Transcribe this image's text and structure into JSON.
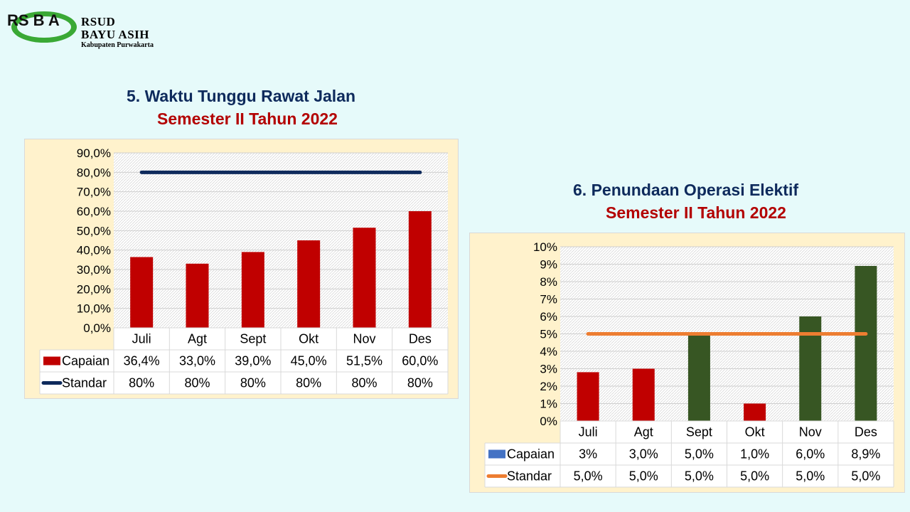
{
  "header": {
    "logo_mark": "RS B A",
    "org_line1": "RSUD",
    "org_line2": "BAYU ASIH",
    "org_line3": "Kabupaten Purwakarta"
  },
  "colors": {
    "background": "#e6fafa",
    "panel": "#fff2cc",
    "capaian_red": "#c00000",
    "capaian_green": "#375623",
    "standar_navy": "#0e2a5c",
    "standar_orange": "#ed7d31",
    "legend_blue": "#4472c4"
  },
  "chart_data": [
    {
      "type": "bar",
      "title": "5. Waktu Tunggu Rawat Jalan",
      "subtitle": "Semester II Tahun 2022",
      "categories": [
        "Juli",
        "Agt",
        "Sept",
        "Okt",
        "Nov",
        "Des"
      ],
      "ylim": [
        0,
        90
      ],
      "yticks": [
        "0,0%",
        "10,0%",
        "20,0%",
        "30,0%",
        "40,0%",
        "50,0%",
        "60,0%",
        "70,0%",
        "80,0%",
        "90,0%"
      ],
      "series": [
        {
          "name": "Capaian",
          "kind": "bar",
          "values": [
            36.4,
            33.0,
            39.0,
            45.0,
            51.5,
            60.0
          ],
          "labels": [
            "36,4%",
            "33,0%",
            "39,0%",
            "45,0%",
            "51,5%",
            "60,0%"
          ]
        },
        {
          "name": "Standar",
          "kind": "line",
          "values": [
            80,
            80,
            80,
            80,
            80,
            80
          ],
          "labels": [
            "80%",
            "80%",
            "80%",
            "80%",
            "80%",
            "80%"
          ]
        }
      ],
      "grid": true,
      "legend": "data-table"
    },
    {
      "type": "bar",
      "title": "6. Penundaan Operasi Elektif",
      "subtitle": "Semester II Tahun 2022",
      "categories": [
        "Juli",
        "Agt",
        "Sept",
        "Okt",
        "Nov",
        "Des"
      ],
      "ylim": [
        0,
        10
      ],
      "yticks": [
        "0%",
        "1%",
        "2%",
        "3%",
        "4%",
        "5%",
        "6%",
        "7%",
        "8%",
        "9%",
        "10%"
      ],
      "series": [
        {
          "name": "Capaian",
          "kind": "bar",
          "values": [
            2.8,
            3.0,
            5.0,
            1.0,
            6.0,
            8.9
          ],
          "labels": [
            "3%",
            "3,0%",
            "5,0%",
            "1,0%",
            "6,0%",
            "8,9%"
          ],
          "bar_colors": [
            "#c00000",
            "#c00000",
            "#375623",
            "#c00000",
            "#375623",
            "#375623"
          ]
        },
        {
          "name": "Standar",
          "kind": "line",
          "values": [
            5,
            5,
            5,
            5,
            5,
            5
          ],
          "labels": [
            "5,0%",
            "5,0%",
            "5,0%",
            "5,0%",
            "5,0%",
            "5,0%"
          ]
        }
      ],
      "grid": true,
      "legend": "data-table"
    }
  ]
}
